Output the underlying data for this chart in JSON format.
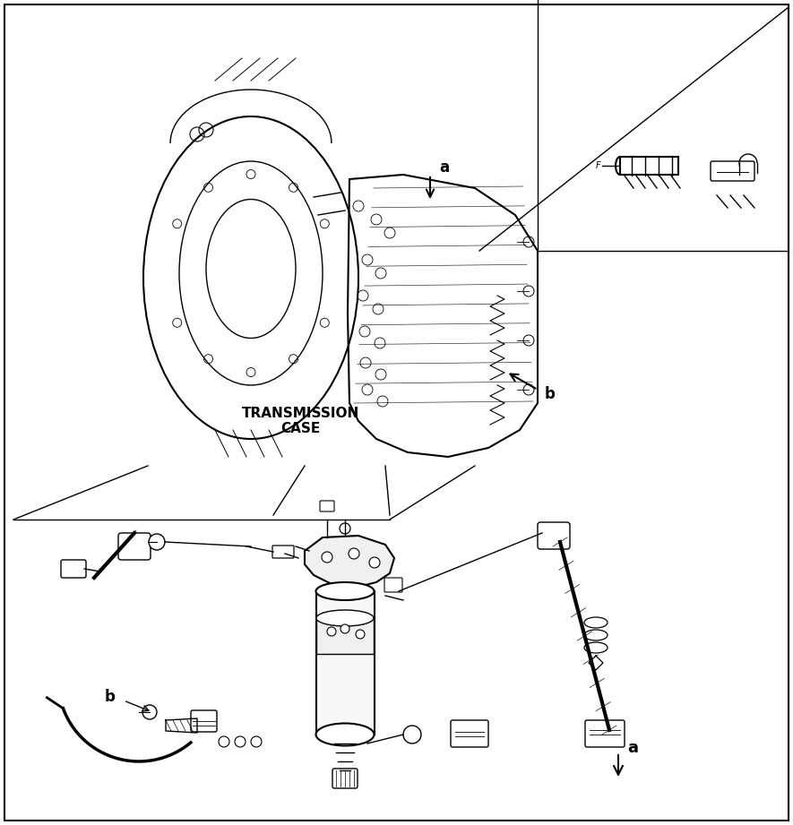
{
  "bg_color": "#ffffff",
  "line_color": "#000000",
  "text_color": "#000000",
  "fig_width": 8.85,
  "fig_height": 9.21,
  "dpi": 100,
  "transmission_case_label": "TRANSMISSION\nCASE",
  "label_a_upper": "a",
  "label_b_upper": "b",
  "label_a_lower": "a",
  "label_b_lower": "b",
  "label_F": "F"
}
